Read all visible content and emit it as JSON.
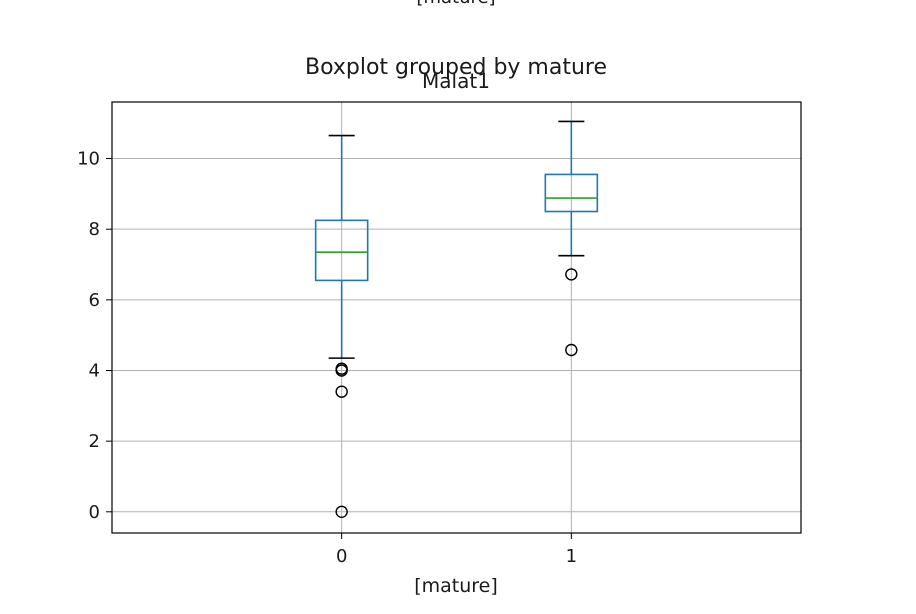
{
  "chart_data": {
    "type": "box",
    "suptitle": "Boxplot grouped by mature",
    "title": "Malat1",
    "xlabel": "[mature]",
    "top_cropped_label": "[mature]",
    "ylabel": "",
    "categories": [
      "0",
      "1"
    ],
    "ylim": [
      -0.6,
      11.6
    ],
    "yticks": [
      0,
      2,
      4,
      6,
      8,
      10
    ],
    "grid": true,
    "colors": {
      "box": "#1f77b4",
      "median": "#2ca02c",
      "whisker_cap": "#000000",
      "flier": "#000000",
      "grid": "#b0b0b0"
    },
    "series": [
      {
        "category": "0",
        "whisker_low": 4.35,
        "q1": 6.55,
        "median": 7.35,
        "q3": 8.25,
        "whisker_high": 10.65,
        "fliers": [
          4.05,
          4.0,
          3.4,
          0.0
        ]
      },
      {
        "category": "1",
        "whisker_low": 7.25,
        "q1": 8.5,
        "median": 8.88,
        "q3": 9.55,
        "whisker_high": 11.05,
        "fliers": [
          6.72,
          4.58
        ]
      }
    ]
  }
}
